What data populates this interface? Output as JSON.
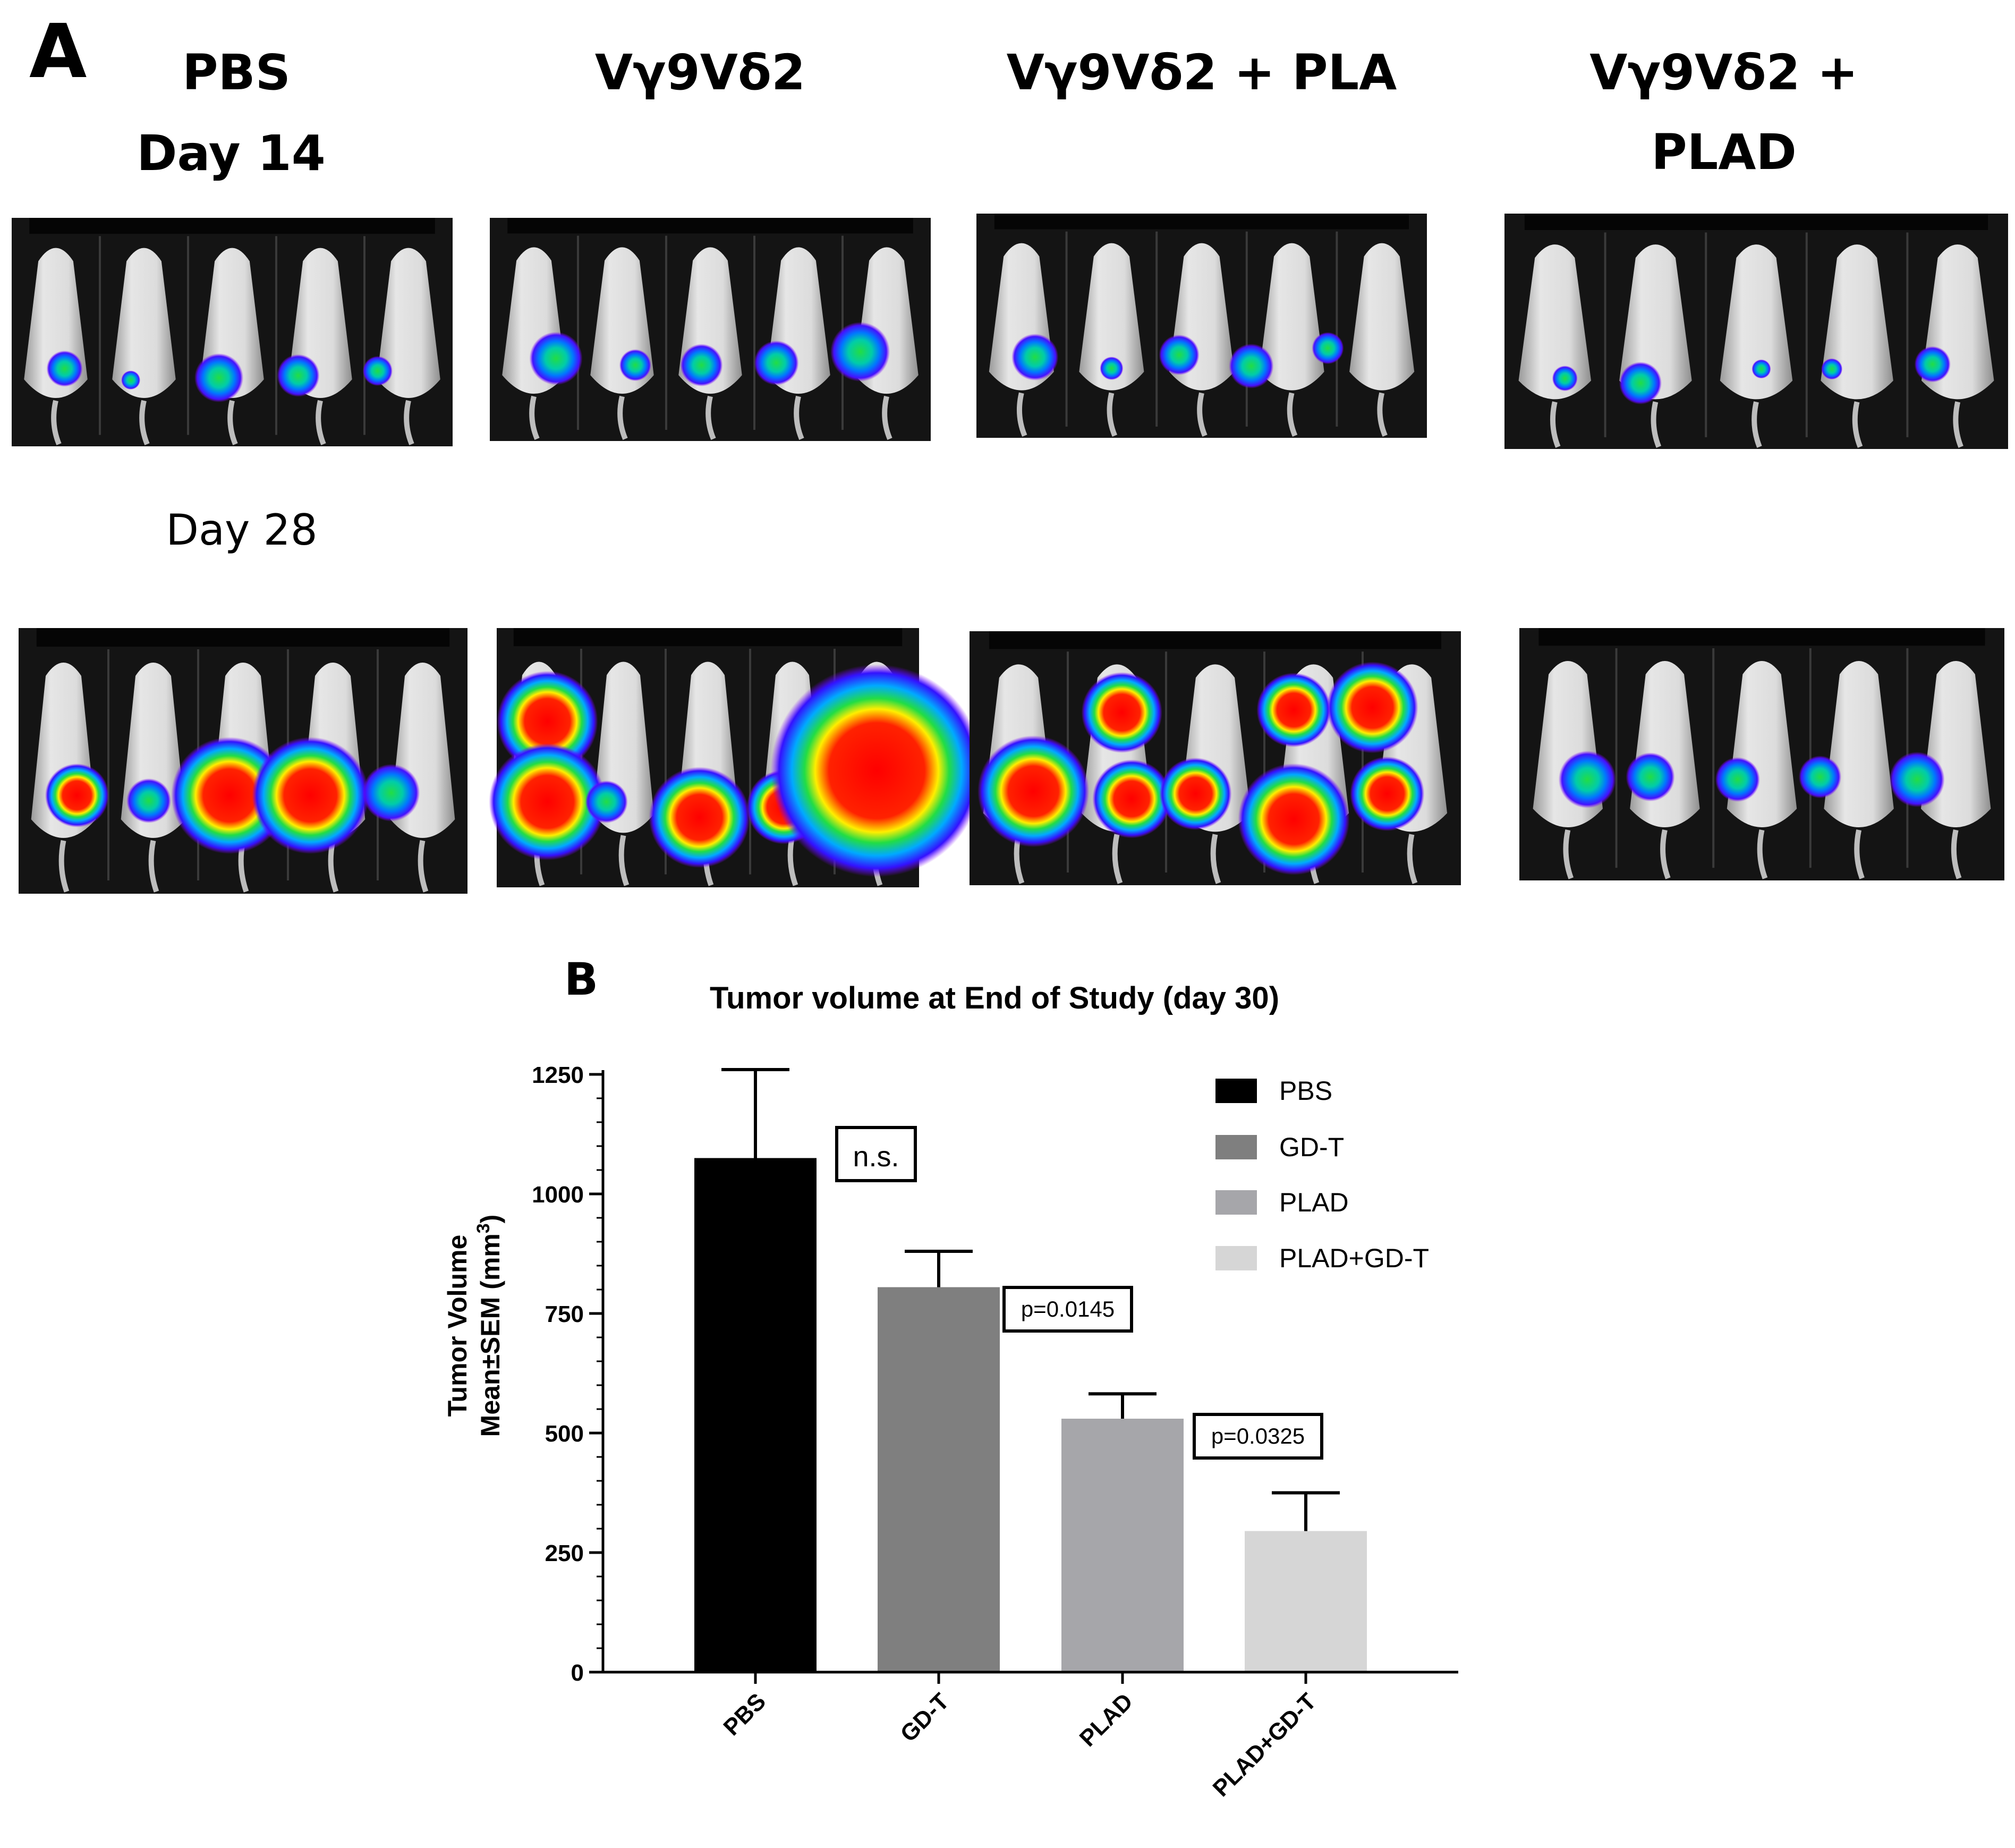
{
  "panel_a": {
    "letter": "A",
    "group_titles": [
      "PBS",
      "Vγ9Vδ2",
      "Vγ9Vδ2 + PLA",
      "Vγ9Vδ2 +",
      "PLAD"
    ],
    "day_labels": [
      "Day 14",
      "Day 28"
    ]
  },
  "panel_b": {
    "letter": "B"
  },
  "chart_data": {
    "type": "bar",
    "title": "Tumor volume at End of Study (day 30)",
    "ylabel_line1": "Tumor Volume",
    "ylabel_line2": "Mean±SEM (mm",
    "ylabel_sup": "3",
    "ylabel_close": ")",
    "ylim": [
      0,
      1250
    ],
    "yticks": [
      0,
      250,
      500,
      750,
      1000,
      1250
    ],
    "ytick_labels": [
      "0",
      "250",
      "500",
      "750",
      "1000",
      "1250"
    ],
    "categories": [
      "PBS",
      "GD-T",
      "PLAD",
      "PLAD+GD-T"
    ],
    "values": [
      1075,
      805,
      530,
      295
    ],
    "errors": [
      185,
      75,
      52,
      80
    ],
    "colors": [
      "#000000",
      "#7f7f7f",
      "#a6a6aa",
      "#d6d6d6"
    ],
    "legend": {
      "position": "top-right",
      "entries": [
        "PBS",
        "GD-T",
        "PLAD",
        "PLAD+GD-T"
      ]
    },
    "annotations": [
      "n.s.",
      "p=0.0145",
      "p=0.0325"
    ]
  }
}
